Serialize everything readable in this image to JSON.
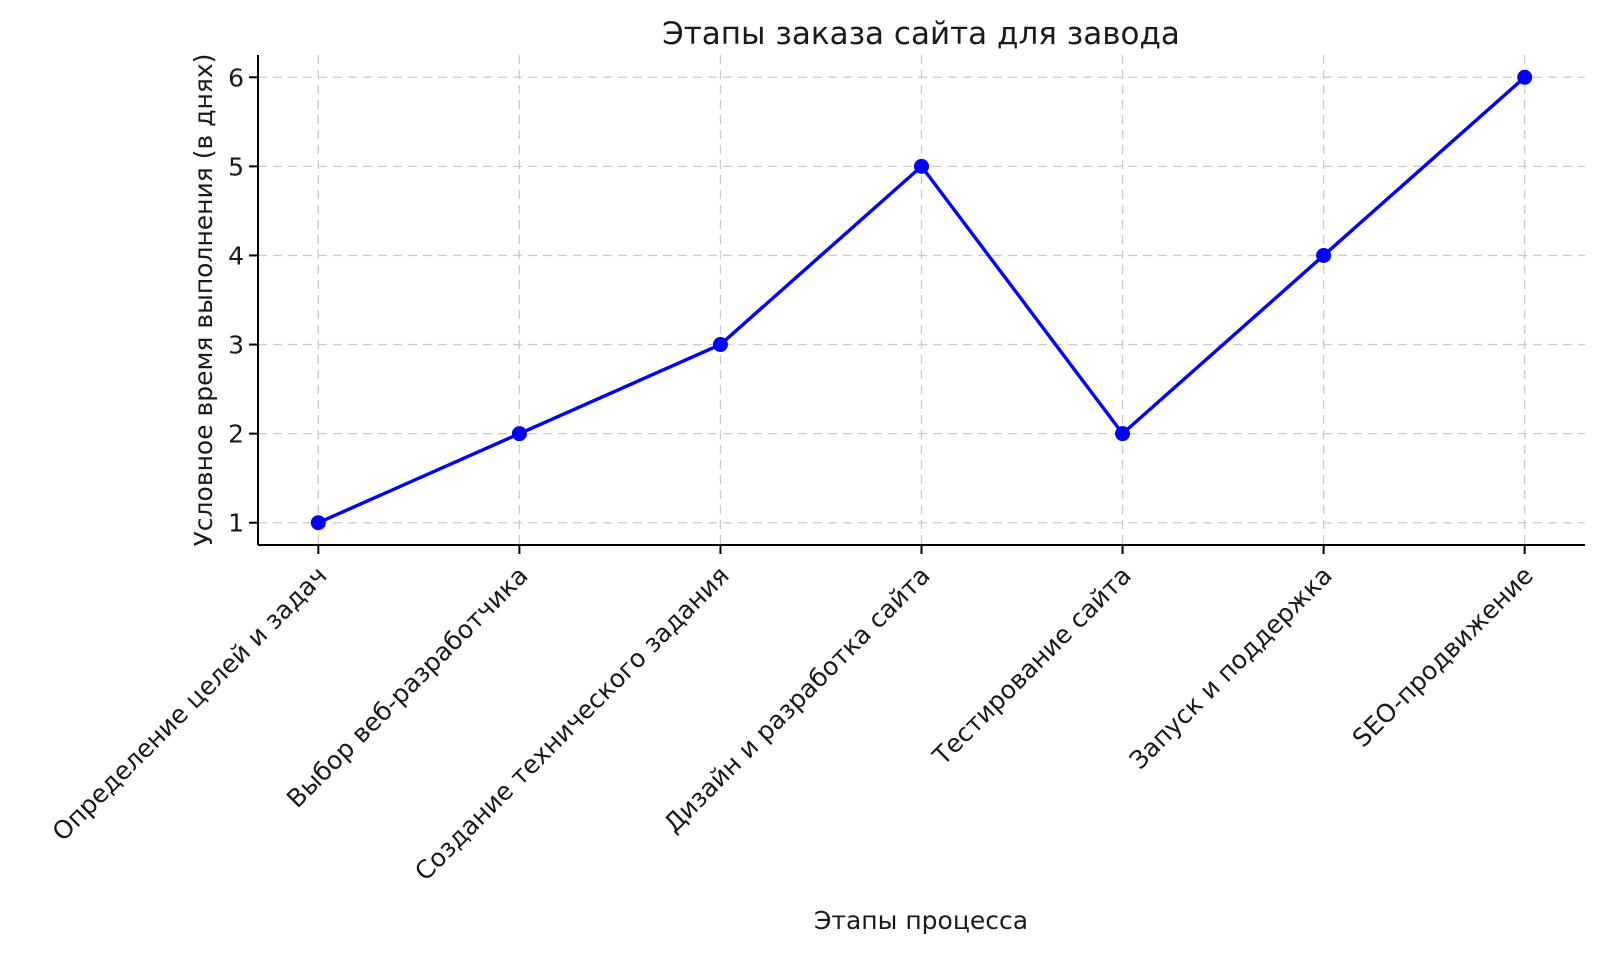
{
  "figure": {
    "background": "#ffffff"
  },
  "chart_data": {
    "type": "line",
    "title": "Этапы заказа сайта для завода",
    "xlabel": "Этапы процесса",
    "ylabel": "Условное время выполнения (в днях)",
    "categories": [
      "Определение целей и задач",
      "Выбор веб-разработчика",
      "Создание технического задания",
      "Дизайн и разработка сайта",
      "Тестирование сайта",
      "Запуск и поддержка",
      "SEO-продвижение"
    ],
    "values": [
      1,
      2,
      3,
      5,
      2,
      4,
      6
    ],
    "yticks": [
      "1",
      "2",
      "3",
      "4",
      "5",
      "6"
    ],
    "ylim": [
      0.75,
      6.25
    ],
    "grid": true,
    "grid_style": "dashed",
    "legend_position": "none",
    "marker": "circle",
    "colors": {
      "line": "#0000ff",
      "marker": "#0000ff",
      "grid": "#cbcbcb",
      "spine": "#000000",
      "text": "#1a1a1a"
    }
  }
}
